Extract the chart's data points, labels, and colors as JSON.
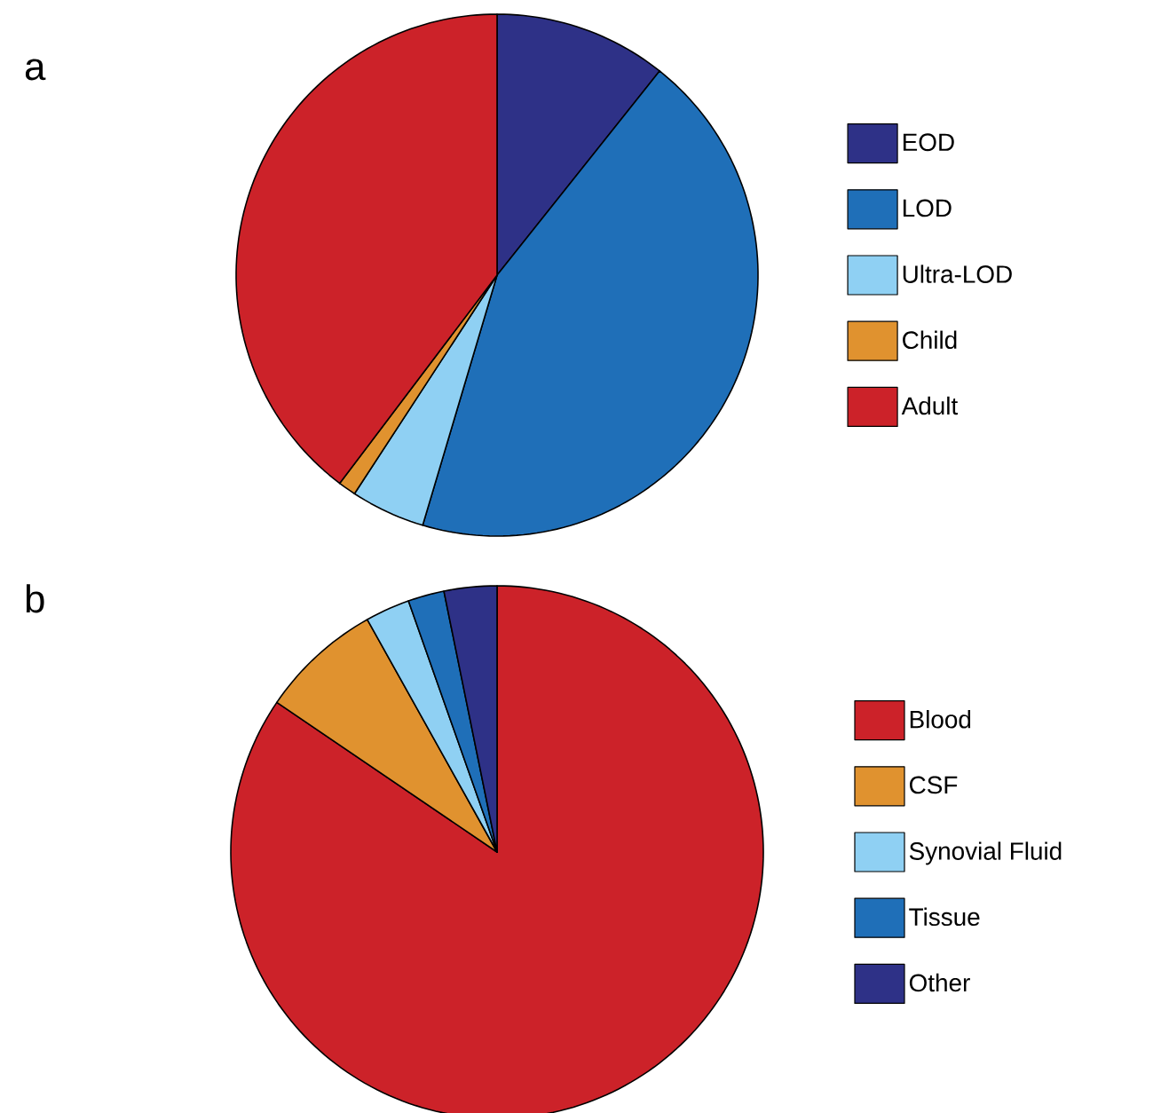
{
  "chart_data": [
    {
      "type": "pie",
      "title": "a",
      "categories": [
        "EOD",
        "LOD",
        "Ultra-LOD",
        "Child",
        "Adult"
      ],
      "values": [
        10.7,
        43.9,
        4.6,
        1.1,
        39.7
      ],
      "colors": [
        "#2e3187",
        "#1f6fb8",
        "#8fd0f3",
        "#e0922f",
        "#cc2229"
      ],
      "legend": "right"
    },
    {
      "type": "pie",
      "title": "b",
      "categories": [
        "Blood",
        "CSF",
        "Synovial Fluid",
        "Tissue",
        "Other"
      ],
      "values": [
        84.5,
        7.4,
        2.7,
        2.2,
        3.2
      ],
      "colors": [
        "#cc2229",
        "#e0922f",
        "#8fd0f3",
        "#1f6fb8",
        "#2e3187"
      ],
      "legend": "right"
    }
  ]
}
